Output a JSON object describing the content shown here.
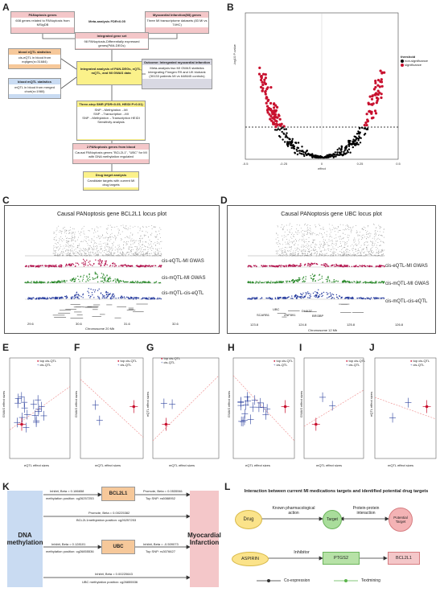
{
  "panels": {
    "A": "A",
    "B": "B",
    "C": "C",
    "D": "D",
    "E": "E",
    "F": "F",
    "G": "G",
    "H": "H",
    "I": "I",
    "J": "J",
    "K": "K",
    "L": "L"
  },
  "flow": {
    "panoptosis_title": "PANoptosis genes",
    "panoptosis_body": "608 genes related to PANoptosis from MSigDB",
    "mi_title": "Myocardial Infarction(MI) genes",
    "mi_body": "Three MI transcriptome datasets (83 MI vs 74HC)",
    "meta_label": "Meta-analysis FDR<0.05",
    "integrated_title": "Integrated gene set",
    "integrated_body": "98 PANoptosis-Differentially expressed genes(PAN-DEGs)",
    "eqtl_title": "blood eQTL statistics",
    "eqtl_body": "cis-eQTL in blood from eqtlgen(n=31684)",
    "mqtl_title": "blood mQTL statistics",
    "mqtl_body": "mQTL in blood from merged chort(n=1980)",
    "analysis_title": "Integrated analysis of PAN-DEGs, eQTL, mQTL, and MI GWAS data",
    "outcome_title": "Outcome: Intergrated myocardial infarction",
    "outcome_body": "Meta-analysis two MI GWAS statistics intergrating Finngen R9 and UK biobank (30133 patients MI vs 648645 controls)",
    "smr_title": "Three-step SMR (FDR<0.05, HEIDI P>0.01)",
    "smr_body": "SNP→Methylation→MI SNP→Transcription→MI SNP→Methylation→Transcription HEIDI Sensitivity analysis",
    "candidate_title": "2 PANoptosis genes from blood",
    "candidate_body": "Causal PANoptosis genes \"BCL2L1\", \"UBC\" for MI with DNA methylation regulated",
    "drug_title": "Drug target analysis",
    "drug_body": "Candidate targets with current MI drug targets"
  },
  "volcano": {
    "legend_title": "threshold",
    "legend_items": [
      "non-significance",
      "significance"
    ],
    "xlabel": "effect",
    "ylabel": "-log10 P-value",
    "xticks": [
      "-0.5",
      "-0.25",
      "0",
      "0.25",
      "0.5"
    ]
  },
  "locus_c": {
    "title": "Causal PANoptosis gene BCL2L1 locus plot",
    "tracks": [
      "cis-eQTL-MI GWAS",
      "cis-mQTL-MI GWAS",
      "cis-mQTL-cis-eQTL"
    ],
    "xlabel": "Chromosome 20 Mb",
    "xticks": [
      "29.6",
      "30.6",
      "31.6",
      "32.6"
    ]
  },
  "locus_d": {
    "title": "Causal PANoptosis gene UBC locus plot",
    "tracks": [
      "cis-eQTL-MI GWAS",
      "cis-mQTL-MI GWAS",
      "cis-mQTL-cis-eQTL"
    ],
    "xlabel": "Chromosome 12 Mb",
    "xticks": [
      "123.8",
      "124.8",
      "125.8",
      "126.8"
    ],
    "genes": [
      "SCARB1",
      "UBC",
      "ZNF891",
      "DHX37",
      "BRI3BP"
    ]
  },
  "scatter": [
    {
      "xlabel": "eQTL effect sizes",
      "ylabel": "GWAS effect sizes",
      "legend": [
        "top cis-QTL",
        "cis-QTL"
      ]
    },
    {
      "xlabel": "mQTL effect sizes",
      "ylabel": "GWAS effect sizes",
      "legend": [
        "top cis-QTL",
        "cis-QTL"
      ]
    },
    {
      "xlabel": "mQTL effect sizes",
      "ylabel": "eQTL effect sizes",
      "legend": [
        "top cis-QTL",
        "cis-QTL"
      ]
    },
    {
      "xlabel": "eQTL effect sizes",
      "ylabel": "GWAS effect sizes",
      "legend": [
        "top cis-QTL",
        "cis-QTL"
      ]
    },
    {
      "xlabel": "mQTL effect sizes",
      "ylabel": "GWAS effect sizes",
      "legend": [
        "top cis-QTL",
        "cis-QTL"
      ]
    },
    {
      "xlabel": "mQTL effect sizes",
      "ylabel": "eQTL effect sizes",
      "legend": [
        "top cis-QTL",
        "cis-QTL"
      ]
    }
  ],
  "mechanism": {
    "dna": "DNA methylation",
    "mi": "Myocardial Infarction",
    "bcl": "BCL2L1",
    "ubc": "UBC",
    "e1a": "Inhibit, Beta = 0.186658",
    "e1b": "methylation position: cg26257253",
    "e2a": "Promote, Beta = 0.0535561",
    "e2b": "Top SNP: rs6088952",
    "e3a": "Promote, Beta = 0.00225382",
    "e3b": "BCL2L1methylation position: cg26257253",
    "e4a": "Inhibit, Beta = 0.128101",
    "e4b": "methylation position: cg26855536",
    "e5a": "Inhibit, Beta = -0.509073",
    "e5b": "Top SNP: rs3076627",
    "e6a": "Inhibit, Beta = 0.00220643",
    "e6b": "UBC methylation position: cg26855536"
  },
  "network": {
    "title": "Interaction between current MI medications targets and identified potential drug targets",
    "drug": "Drug",
    "target": "Target",
    "potential": "Potential Target",
    "known": "Known pharmacological action",
    "ppi": "Protein-protein interaction",
    "aspirin": "ASPIRIN",
    "inhibitor": "Inhibitor",
    "ptgs2": "PTGS2",
    "bcl": "BCL2L1",
    "legend": [
      "Co-expression",
      "Textmining"
    ]
  },
  "colors": {
    "pink": "#f4c7c9",
    "orange": "#f6c89a",
    "blue": "#c9dbf2",
    "yellow": "#fbf18a",
    "red": "#c8102e",
    "green": "#5ab44b"
  }
}
